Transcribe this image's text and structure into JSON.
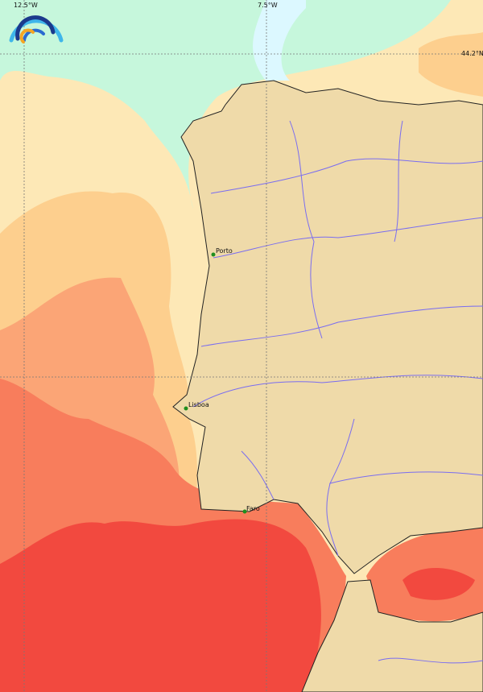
{
  "map": {
    "graticule_labels": {
      "lon1": "12.5°W",
      "lon2": "7.5°W",
      "lat1": "44.2°N"
    },
    "cities": [
      {
        "name": "Porto"
      },
      {
        "name": "Lisboa"
      },
      {
        "name": "Faro"
      }
    ],
    "colors": {
      "land": "#efdaa9",
      "coast": "#222222",
      "river": "#7a6df0",
      "sea_cold": "#c6f7dc",
      "sea_coldest": "#dcf8ff",
      "sea_pale": "#fde8b6",
      "sea_light_orange": "#fdcf8e",
      "sea_orange": "#fba576",
      "sea_salmon": "#f87d5c",
      "sea_red": "#f2493f",
      "city_marker": "#1f8f1f"
    },
    "logo": "rainbow-arcs-logo"
  }
}
